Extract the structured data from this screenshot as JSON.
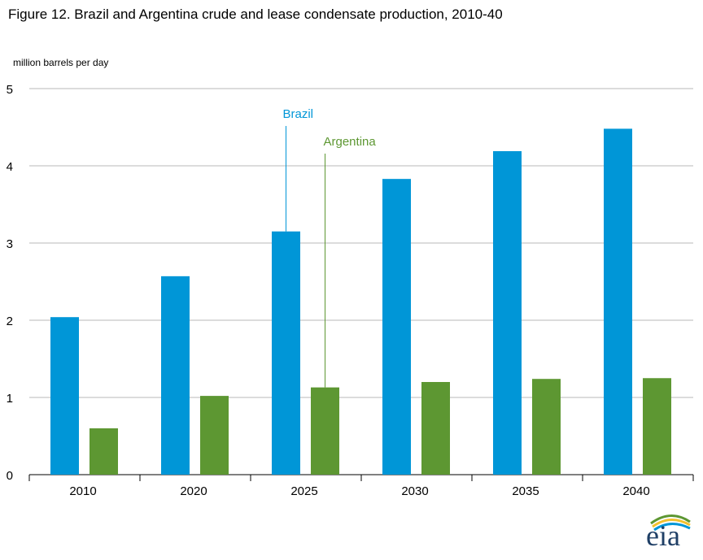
{
  "title": "Figure 12. Brazil and Argentina crude and lease condensate production, 2010-40",
  "colors": {
    "brazil": "#0096d7",
    "argentina": "#5d9732",
    "grid": "#b9b9b9",
    "axis": "#000000"
  },
  "logo": {
    "text": "eia"
  },
  "chart_data": {
    "type": "bar",
    "title": "Figure 12. Brazil and Argentina crude and lease condensate production, 2010-40",
    "ylabel": "million barrels  per day",
    "xlabel": "",
    "categories": [
      "2010",
      "2020",
      "2025",
      "2030",
      "2035",
      "2040"
    ],
    "ylim": [
      0,
      5
    ],
    "yticks": [
      0,
      1,
      2,
      3,
      4,
      5
    ],
    "grid": true,
    "series": [
      {
        "name": "Brazil",
        "color": "#0096d7",
        "values": [
          2.04,
          2.57,
          3.15,
          3.83,
          4.19,
          4.48
        ]
      },
      {
        "name": "Argentina",
        "color": "#5d9732",
        "values": [
          0.6,
          1.02,
          1.13,
          1.2,
          1.24,
          1.25
        ]
      }
    ],
    "annotations": [
      {
        "text": "Brazil",
        "series": "Brazil",
        "category": "2025"
      },
      {
        "text": "Argentina",
        "series": "Argentina",
        "category": "2025"
      }
    ]
  }
}
